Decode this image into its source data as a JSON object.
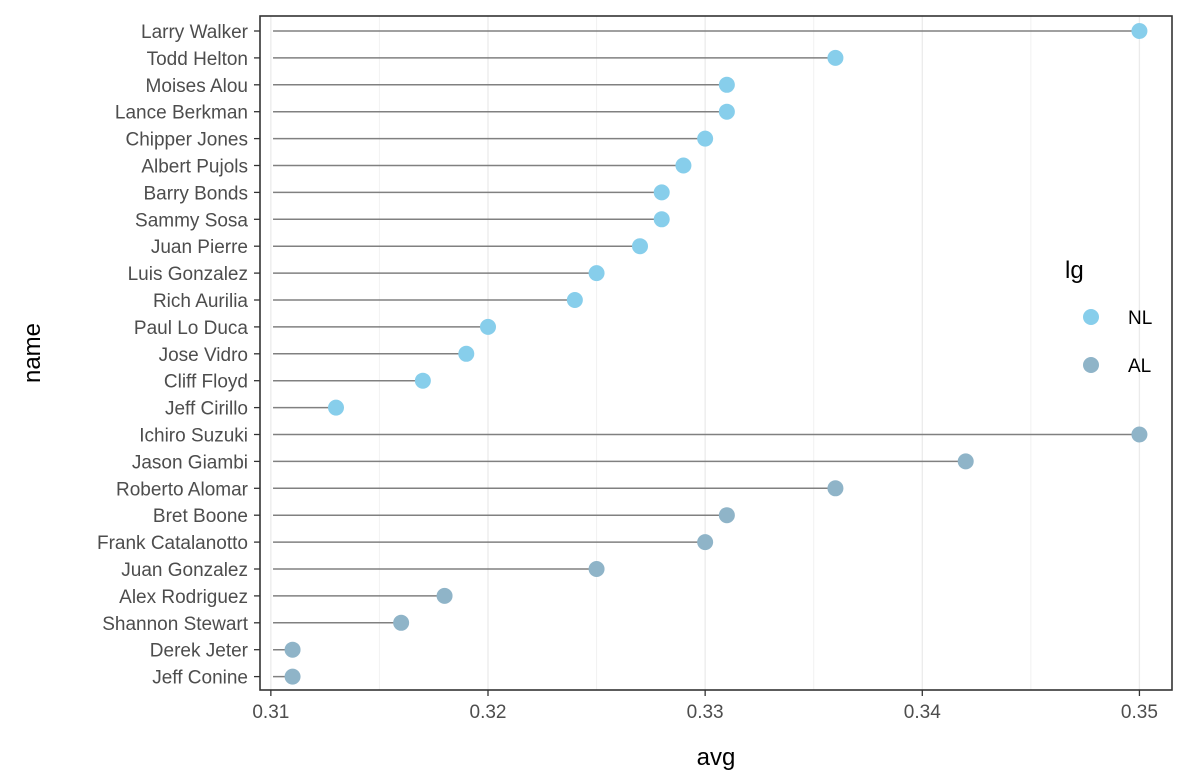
{
  "chart_data": {
    "type": "lollipop",
    "xlabel": "avg",
    "ylabel": "name",
    "xlim": [
      0.3095,
      0.3515
    ],
    "x_ticks": [
      "0.31",
      "0.32",
      "0.33",
      "0.34",
      "0.35"
    ],
    "x_tick_values": [
      0.31,
      0.32,
      0.33,
      0.34,
      0.35
    ],
    "baseline": 0.3101,
    "grid": "vertical major and minor",
    "legend": {
      "title": "lg",
      "placement": "right",
      "entries": [
        {
          "label": "NL",
          "color": "#87ceeb"
        },
        {
          "label": "AL",
          "color": "#8fb4c8"
        }
      ]
    },
    "segment_color": "#808080",
    "rows": [
      {
        "name": "Larry Walker",
        "avg": 0.35,
        "lg": "NL"
      },
      {
        "name": "Todd Helton",
        "avg": 0.336,
        "lg": "NL"
      },
      {
        "name": "Moises Alou",
        "avg": 0.331,
        "lg": "NL"
      },
      {
        "name": "Lance Berkman",
        "avg": 0.331,
        "lg": "NL"
      },
      {
        "name": "Chipper Jones",
        "avg": 0.33,
        "lg": "NL"
      },
      {
        "name": "Albert Pujols",
        "avg": 0.329,
        "lg": "NL"
      },
      {
        "name": "Barry Bonds",
        "avg": 0.328,
        "lg": "NL"
      },
      {
        "name": "Sammy Sosa",
        "avg": 0.328,
        "lg": "NL"
      },
      {
        "name": "Juan Pierre",
        "avg": 0.327,
        "lg": "NL"
      },
      {
        "name": "Luis Gonzalez",
        "avg": 0.325,
        "lg": "NL"
      },
      {
        "name": "Rich Aurilia",
        "avg": 0.324,
        "lg": "NL"
      },
      {
        "name": "Paul Lo Duca",
        "avg": 0.32,
        "lg": "NL"
      },
      {
        "name": "Jose Vidro",
        "avg": 0.319,
        "lg": "NL"
      },
      {
        "name": "Cliff Floyd",
        "avg": 0.317,
        "lg": "NL"
      },
      {
        "name": "Jeff Cirillo",
        "avg": 0.313,
        "lg": "NL"
      },
      {
        "name": "Ichiro Suzuki",
        "avg": 0.35,
        "lg": "AL"
      },
      {
        "name": "Jason Giambi",
        "avg": 0.342,
        "lg": "AL"
      },
      {
        "name": "Roberto Alomar",
        "avg": 0.336,
        "lg": "AL"
      },
      {
        "name": "Bret Boone",
        "avg": 0.331,
        "lg": "AL"
      },
      {
        "name": "Frank Catalanotto",
        "avg": 0.33,
        "lg": "AL"
      },
      {
        "name": "Juan Gonzalez",
        "avg": 0.325,
        "lg": "AL"
      },
      {
        "name": "Alex Rodriguez",
        "avg": 0.318,
        "lg": "AL"
      },
      {
        "name": "Shannon Stewart",
        "avg": 0.316,
        "lg": "AL"
      },
      {
        "name": "Derek Jeter",
        "avg": 0.311,
        "lg": "AL"
      },
      {
        "name": "Jeff Conine",
        "avg": 0.311,
        "lg": "AL"
      }
    ]
  }
}
